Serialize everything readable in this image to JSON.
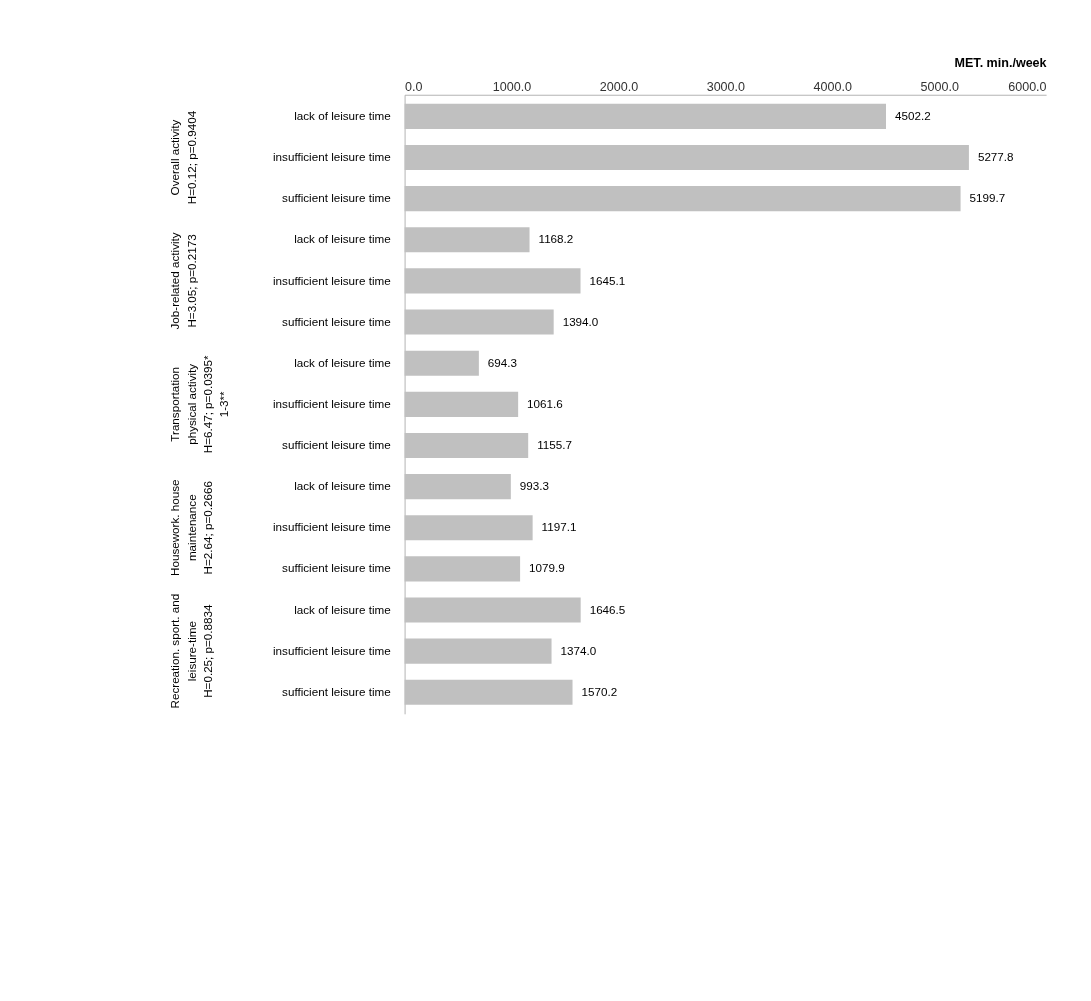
{
  "chart_data": {
    "type": "bar",
    "orientation": "horizontal",
    "xlabel": "MET. min./week",
    "categories": [
      "lack of leisure time",
      "insufficient leisure time",
      "sufficient leisure time",
      "lack of leisure time",
      "insufficient leisure time",
      "sufficient leisure time",
      "lack of leisure time",
      "insufficient leisure time",
      "sufficient leisure time",
      "lack of leisure time",
      "insufficient leisure time",
      "sufficient leisure time",
      "lack of leisure time",
      "insufficient leisure time",
      "sufficient leisure time"
    ],
    "values": [
      4502.2,
      5277.8,
      5199.7,
      1168.2,
      1645.1,
      1394.0,
      694.3,
      1061.6,
      1155.7,
      993.3,
      1197.1,
      1079.9,
      1646.5,
      1374.0,
      1570.2
    ],
    "color": "#c0c0c0",
    "xlim": [
      0,
      6000
    ],
    "xticks": [
      {
        "value": 0,
        "label": "0.0"
      },
      {
        "value": 1000,
        "label": "1000.0"
      },
      {
        "value": 2000,
        "label": "2000.0"
      },
      {
        "value": 3000,
        "label": "3000.0"
      },
      {
        "value": 4000,
        "label": "4000.0"
      },
      {
        "value": 5000,
        "label": "5000.0"
      },
      {
        "value": 6000,
        "label": "6000.0"
      }
    ],
    "value_labels": [
      "4502.2",
      "5277.8",
      "5199.7",
      "1168.2",
      "1645.1",
      "1394.0",
      "694.3",
      "1061.6",
      "1155.7",
      "993.3",
      "1197.1",
      "1079.9",
      "1646.5",
      "1374.0",
      "1570.2"
    ],
    "grid": false,
    "annotations": [
      "Overall activity\nH=0.12; p=0.9404",
      "Job-related activity\nH=3.05; p=0.2173",
      "Transportation\nphysical activity\nH=6.47; p=0.0395*\n1-3**",
      "Housework. house\nmaintenance\nH=2.64; p=0.2666",
      "Recreation. sport. and\nleisure-time\nH=0.25; p=0.8834"
    ]
  }
}
